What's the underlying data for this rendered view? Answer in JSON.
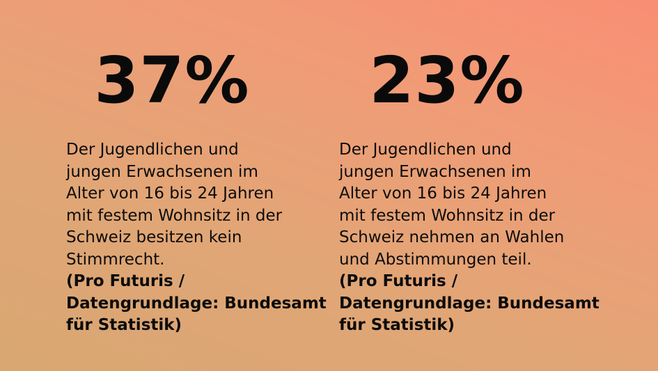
{
  "stats": [
    {
      "value": "37%",
      "description": "Der Jugendlichen und\njungen Erwachsenen im\nAlter von 16 bis 24 Jahren\nmit festem Wohnsitz in der\nSchweiz besitzen kein\nStimmrecht.",
      "source": "(Pro Futuris /\nDatengrundlage: Bundesamt\nfür Statistik)"
    },
    {
      "value": "23%",
      "description": "Der Jugendlichen und\njungen Erwachsenen im\nAlter von 16 bis 24 Jahren\nmit festem Wohnsitz in der\nSchweiz nehmen an Wahlen\nund Abstimmungen teil.",
      "source": "(Pro Futuris /\nDatengrundlage: Bundesamt\nfür Statistik)"
    }
  ],
  "colors": {
    "background_gradient": [
      "#f98e74",
      "#f09c76",
      "#e1a676",
      "#d8a772"
    ],
    "text": "#0a0a0a"
  }
}
